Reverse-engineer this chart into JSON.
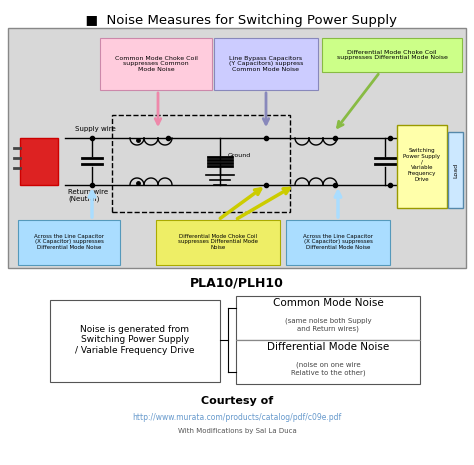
{
  "title": "  ■  Noise Measures for Switching Power Supply",
  "subtitle": "PLA10/PLH10",
  "courtesy_title": "Courtesy of",
  "courtesy_url": "http://www.murata.com/products/catalog/pdf/c09e.pdf",
  "courtesy_note": "With Modifications by Sal La Duca",
  "bg_color": "#ffffff",
  "diagram_bg": "#dddddd",
  "supply_wire_label": "Supply wire",
  "return_wire_label": "Return wire\n(Neutral)",
  "ground_label": "Ground",
  "load_label": "Load",
  "switching_label": "Switching\nPower Supply\n/\nVariable\nFrequency\nDrive",
  "pink_box_text": "Common Mode Choke Coil\nsuppresses Common\nMode Noise",
  "blue_box_text": "Line Bypass Capacitors\n(Y Capacitors) suppress\nCommon Mode Noise",
  "green_box_text": "Differential Mode Choke Coil\nsuppresses Differential Mode Noise",
  "left_bot_text": "Across the Line Capacitor\n(X Capacitor) suppresses\nDifferential Mode Noise",
  "center_bot_text": "Differential Mode Choke Coil\nsuppresses Differential Mode\nNoise",
  "right_bot_text": "Across the Line Capacitor\n(X Capacitor) suppresses\nDifferential Mode Noise",
  "legend_left_text": "Noise is generated from\nSwitching Power Supply\n/ Variable Frequency Drive",
  "common_noise_title": "Common Mode Noise",
  "common_noise_sub": "(same noise both Supply\nand Return wires)",
  "diff_noise_title": "Differential Mode Noise",
  "diff_noise_sub": "(noise on one wire\nRelative to the other)"
}
